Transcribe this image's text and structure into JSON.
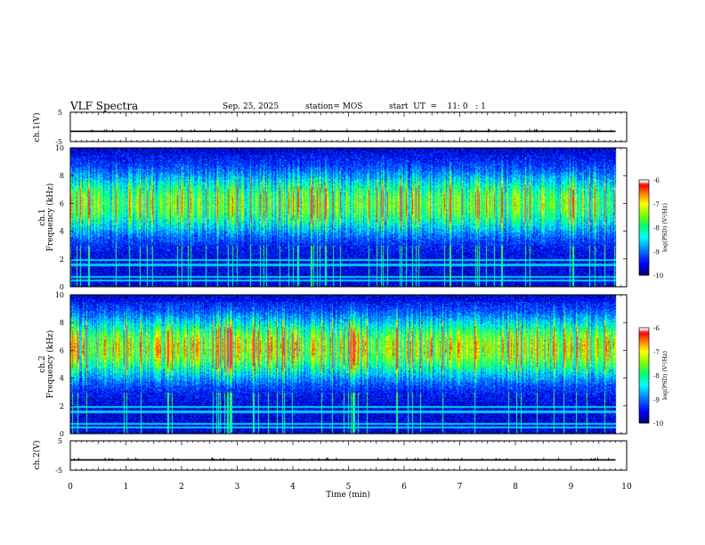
{
  "header": {
    "title": "VLF Spectra",
    "date": "Sep. 25, 2025",
    "station": "station= MOS",
    "start": "start  UT  =    11: 0   : 1"
  },
  "colors": {
    "background": "#ffffff",
    "axis": "#000000",
    "colormap": [
      "#000080",
      "#0000ff",
      "#00b0ff",
      "#00ffff",
      "#00ff80",
      "#80ff00",
      "#ffff00",
      "#ff8000",
      "#ff0000",
      "#ffffff"
    ]
  },
  "chart_data": [
    {
      "type": "line",
      "panel": "ch1-voltage",
      "ylabel": "ch.1(V)",
      "ylim": [
        -5,
        5
      ],
      "yticks": [
        "5",
        "-5"
      ],
      "xlim": [
        0,
        10
      ],
      "series": [
        {
          "x": [
            0,
            9.8
          ],
          "values": [
            -1.5,
            -1.5
          ]
        }
      ]
    },
    {
      "type": "heatmap",
      "panel": "ch1-spectrogram",
      "ylabel": "ch.1\nFrequency (kHz)",
      "ylabel_lines": [
        "ch.1",
        "Frequency (kHz)"
      ],
      "ylim": [
        0,
        10
      ],
      "yticks": [
        "0",
        "2",
        "4",
        "6",
        "8",
        "10"
      ],
      "xlim": [
        0,
        10
      ],
      "data_end_min": 9.8,
      "colorbar": {
        "label": "log(PSD) (V²/Hz)",
        "range": [
          -10,
          -6
        ],
        "ticks": [
          "-6",
          "-7",
          "-8",
          "-9",
          "-10"
        ]
      },
      "band_center_khz": 6,
      "peak_log_psd": -6.8,
      "floor_log_psd": -9.6,
      "line_freqs_khz": [
        0.5,
        0.75,
        1.6,
        1.95
      ]
    },
    {
      "type": "heatmap",
      "panel": "ch2-spectrogram",
      "ylabel": "ch.2\nFrequency (kHz)",
      "ylabel_lines": [
        "ch.2",
        "Frequency (kHz)"
      ],
      "ylim": [
        0,
        10
      ],
      "yticks": [
        "0",
        "2",
        "4",
        "6",
        "8",
        "10"
      ],
      "xlim": [
        0,
        10
      ],
      "data_end_min": 9.8,
      "colorbar": {
        "label": "log(PSD) (V²/Hz)",
        "range": [
          -10,
          -6
        ],
        "ticks": [
          "-6",
          "-7",
          "-8",
          "-9",
          "-10"
        ]
      },
      "band_center_khz": 6.2,
      "peak_log_psd": -6.2,
      "floor_log_psd": -9.6,
      "line_freqs_khz": [
        0.5,
        0.75,
        1.6,
        1.95
      ]
    },
    {
      "type": "line",
      "panel": "ch2-voltage",
      "ylabel": "ch.2(V)",
      "ylim": [
        -5,
        5
      ],
      "yticks": [
        "5",
        "-5"
      ],
      "xlim": [
        0,
        10
      ],
      "series": [
        {
          "x": [
            0,
            9.8
          ],
          "values": [
            -1.5,
            -1.5
          ]
        }
      ]
    }
  ],
  "xaxis": {
    "label": "Time  (min)",
    "ticks": [
      "0",
      "1",
      "2",
      "3",
      "4",
      "5",
      "6",
      "7",
      "8",
      "9",
      "10"
    ],
    "range": [
      0,
      10
    ]
  }
}
